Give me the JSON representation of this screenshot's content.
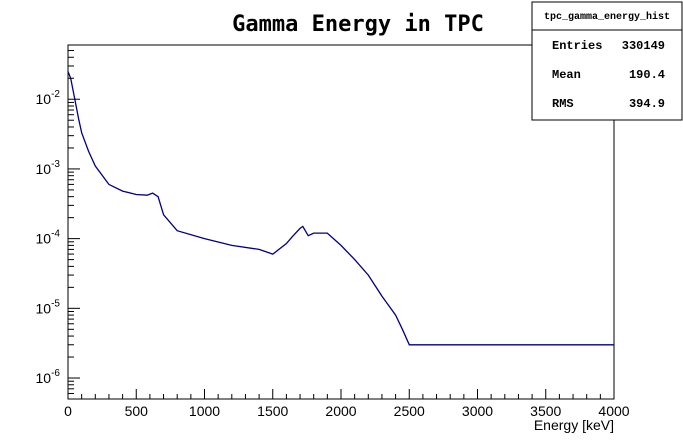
{
  "chart_data": {
    "type": "histogram",
    "title": "Gamma Energy in TPC",
    "xlabel": "Energy [keV]",
    "ylabel": "",
    "xlim": [
      0,
      4000
    ],
    "ylim": [
      5e-07,
      0.06
    ],
    "yscale": "log",
    "grid": false,
    "line_color": "#000080",
    "x_ticks": [
      "0",
      "500",
      "1000",
      "1500",
      "2000",
      "2500",
      "3000",
      "3500",
      "4000"
    ],
    "y_ticks": [
      {
        "value": 0.01,
        "base": "10",
        "exp": "-2"
      },
      {
        "value": 0.001,
        "base": "10",
        "exp": "-3"
      },
      {
        "value": 0.0001,
        "base": "10",
        "exp": "-4"
      },
      {
        "value": 1e-05,
        "base": "10",
        "exp": "-5"
      },
      {
        "value": 1e-06,
        "base": "10",
        "exp": "-6"
      }
    ],
    "series": [
      {
        "x": [
          0,
          20,
          50,
          80,
          100,
          150,
          200,
          300,
          400,
          500,
          580,
          620,
          660,
          700,
          800,
          1000,
          1200,
          1400,
          1500,
          1600,
          1650,
          1700,
          1720,
          1760,
          1800,
          1900,
          2000,
          2100,
          2200,
          2300,
          2400,
          2450,
          2500,
          2600,
          3000,
          3500,
          4000
        ],
        "y": [
          0.025,
          0.02,
          0.01,
          0.005,
          0.0033,
          0.0018,
          0.0011,
          0.0006,
          0.00048,
          0.00043,
          0.00042,
          0.00045,
          0.0004,
          0.00022,
          0.00013,
          0.0001,
          8e-05,
          7e-05,
          6e-05,
          8.5e-05,
          0.00011,
          0.00014,
          0.00015,
          0.00011,
          0.00012,
          0.00012,
          8e-05,
          5e-05,
          3e-05,
          1.5e-05,
          8e-06,
          5e-06,
          3e-06,
          3e-06,
          3e-06,
          3e-06,
          3e-06
        ]
      }
    ],
    "stats": {
      "name": "tpc_gamma_energy_hist",
      "rows": [
        {
          "label": "Entries",
          "value": "330149"
        },
        {
          "label": "Mean",
          "value": "190.4"
        },
        {
          "label": "RMS",
          "value": "394.9"
        }
      ]
    }
  }
}
